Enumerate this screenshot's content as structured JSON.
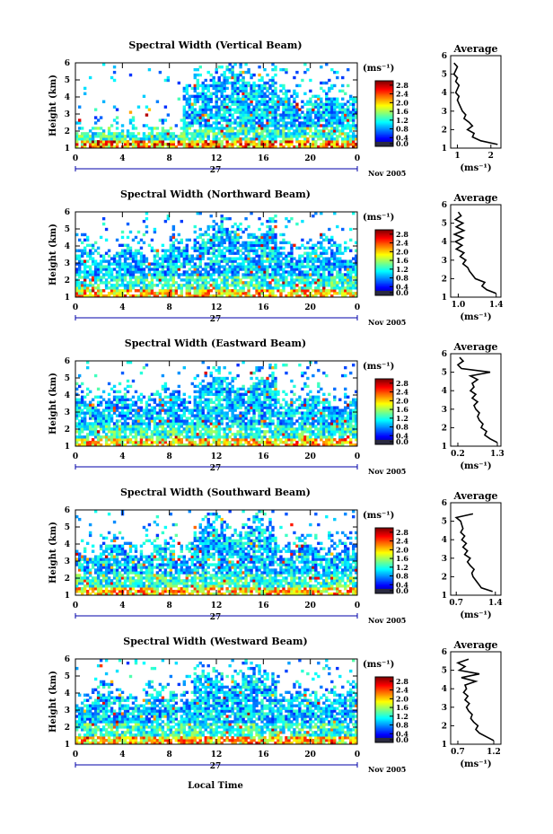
{
  "figure": {
    "xlabel": "Local Time",
    "day_label": "27",
    "month_label": "Nov 2005",
    "unit_label": "(ms⁻¹)",
    "avg_title": "Average",
    "avg_xlabel": "(ms⁻¹)"
  },
  "chart_data": [
    {
      "type": "heatmap",
      "title": "Spectral Width (Vertical Beam)",
      "ylabel": "Height (km)",
      "x_ticks": [
        "0",
        "4",
        "8",
        "12",
        "16",
        "20",
        "0"
      ],
      "y_ticks": [
        "1",
        "2",
        "3",
        "4",
        "5",
        "6"
      ],
      "xlim": [
        0,
        24
      ],
      "ylim": [
        1,
        6
      ],
      "colorbar": {
        "ticks": [
          "0.0",
          "0.4",
          "0.8",
          "1.2",
          "1.6",
          "2.0",
          "2.4",
          "2.8"
        ],
        "range": [
          0,
          3.0
        ]
      },
      "avg_profile": {
        "x_ticks": [
          "1",
          "2"
        ],
        "xlim": [
          0.8,
          2.3
        ],
        "heights": [
          1.2,
          1.4,
          1.6,
          1.8,
          2.0,
          2.2,
          2.4,
          2.6,
          2.8,
          3.0,
          3.2,
          3.4,
          3.6,
          3.8,
          4.0,
          4.2,
          4.4,
          4.6,
          4.8,
          5.0,
          5.2,
          5.4,
          5.6
        ],
        "values": [
          2.2,
          1.7,
          1.45,
          1.5,
          1.3,
          1.45,
          1.35,
          1.2,
          1.25,
          1.15,
          1.1,
          1.05,
          1.0,
          1.05,
          0.95,
          1.0,
          1.05,
          0.95,
          1.0,
          0.9,
          0.95,
          1.0,
          0.9
        ]
      }
    },
    {
      "type": "heatmap",
      "title": "Spectral Width (Northward Beam)",
      "ylabel": "Height (km)",
      "x_ticks": [
        "0",
        "4",
        "8",
        "12",
        "16",
        "20",
        "0"
      ],
      "y_ticks": [
        "1",
        "2",
        "3",
        "4",
        "5",
        "6"
      ],
      "xlim": [
        0,
        24
      ],
      "ylim": [
        1,
        6
      ],
      "colorbar": {
        "ticks": [
          "0.0",
          "0.4",
          "0.8",
          "1.2",
          "1.6",
          "2.0",
          "2.4",
          "2.8"
        ],
        "range": [
          0,
          3.0
        ]
      },
      "avg_profile": {
        "x_ticks": [
          "1.0",
          "1.4"
        ],
        "xlim": [
          0.92,
          1.45
        ],
        "heights": [
          1.2,
          1.4,
          1.6,
          1.8,
          2.0,
          2.2,
          2.4,
          2.6,
          2.8,
          3.0,
          3.2,
          3.4,
          3.6,
          3.8,
          4.0,
          4.2,
          4.4,
          4.6,
          4.8,
          5.0,
          5.2,
          5.4,
          5.6
        ],
        "values": [
          1.4,
          1.3,
          1.25,
          1.28,
          1.18,
          1.15,
          1.12,
          1.1,
          1.05,
          1.08,
          1.02,
          1.06,
          0.98,
          1.04,
          0.97,
          1.05,
          0.96,
          1.06,
          0.98,
          1.05,
          0.97,
          1.03,
          1.0
        ]
      }
    },
    {
      "type": "heatmap",
      "title": "Spectral Width (Eastward Beam)",
      "ylabel": "Height (km)",
      "x_ticks": [
        "0",
        "4",
        "8",
        "12",
        "16",
        "20",
        "0"
      ],
      "y_ticks": [
        "1",
        "2",
        "3",
        "4",
        "5",
        "6"
      ],
      "xlim": [
        0,
        24
      ],
      "ylim": [
        1,
        6
      ],
      "colorbar": {
        "ticks": [
          "0.0",
          "0.4",
          "0.8",
          "1.2",
          "1.6",
          "2.0",
          "2.4",
          "2.8"
        ],
        "range": [
          0,
          3.0
        ]
      },
      "avg_profile": {
        "x_ticks": [
          "0.2",
          "1.3"
        ],
        "xlim": [
          0.0,
          1.4
        ],
        "heights": [
          1.2,
          1.4,
          1.6,
          1.8,
          2.0,
          2.2,
          2.4,
          2.6,
          2.8,
          3.0,
          3.2,
          3.4,
          3.6,
          3.8,
          4.0,
          4.2,
          4.4,
          4.6,
          4.8,
          5.0,
          5.2,
          5.4,
          5.6,
          5.8
        ],
        "values": [
          1.3,
          1.1,
          0.95,
          1.0,
          0.85,
          0.9,
          0.8,
          0.75,
          0.8,
          0.7,
          0.65,
          0.75,
          0.6,
          0.7,
          0.55,
          0.65,
          0.6,
          0.75,
          0.55,
          1.1,
          0.3,
          0.2,
          0.35,
          0.25
        ]
      }
    },
    {
      "type": "heatmap",
      "title": "Spectral Width (Southward Beam)",
      "ylabel": "Height (km)",
      "x_ticks": [
        "0",
        "4",
        "8",
        "12",
        "16",
        "20",
        "0"
      ],
      "y_ticks": [
        "1",
        "2",
        "3",
        "4",
        "5",
        "6"
      ],
      "xlim": [
        0,
        24
      ],
      "ylim": [
        1,
        6
      ],
      "colorbar": {
        "ticks": [
          "0.0",
          "0.4",
          "0.8",
          "1.2",
          "1.6",
          "2.0",
          "2.4",
          "2.8"
        ],
        "range": [
          0,
          3.0
        ]
      },
      "avg_profile": {
        "x_ticks": [
          "0.7",
          "1.4"
        ],
        "xlim": [
          0.6,
          1.5
        ],
        "heights": [
          1.2,
          1.4,
          1.6,
          1.8,
          2.0,
          2.2,
          2.4,
          2.6,
          2.8,
          3.0,
          3.2,
          3.4,
          3.6,
          3.8,
          4.0,
          4.2,
          4.4,
          4.6,
          4.8,
          5.0,
          5.2,
          5.4
        ],
        "values": [
          1.35,
          1.15,
          1.1,
          1.05,
          1.0,
          0.98,
          1.02,
          0.95,
          0.9,
          0.95,
          0.85,
          0.9,
          0.82,
          0.88,
          0.8,
          0.85,
          0.78,
          0.82,
          0.8,
          0.78,
          0.7,
          1.0
        ]
      }
    },
    {
      "type": "heatmap",
      "title": "Spectral Width (Westward Beam)",
      "ylabel": "Height (km)",
      "x_ticks": [
        "0",
        "4",
        "8",
        "12",
        "16",
        "20",
        "0"
      ],
      "y_ticks": [
        "1",
        "2",
        "3",
        "4",
        "5",
        "6"
      ],
      "xlim": [
        0,
        24
      ],
      "ylim": [
        1,
        6
      ],
      "colorbar": {
        "ticks": [
          "0.0",
          "0.4",
          "0.8",
          "1.2",
          "1.6",
          "2.0",
          "2.4",
          "2.8"
        ],
        "range": [
          0,
          3.0
        ]
      },
      "avg_profile": {
        "x_ticks": [
          "0.7",
          "1.2"
        ],
        "xlim": [
          0.6,
          1.3
        ],
        "heights": [
          1.2,
          1.4,
          1.6,
          1.8,
          2.0,
          2.2,
          2.4,
          2.6,
          2.8,
          3.0,
          3.2,
          3.4,
          3.6,
          3.8,
          4.0,
          4.2,
          4.4,
          4.6,
          4.8,
          5.0,
          5.2,
          5.4,
          5.6
        ],
        "values": [
          1.2,
          1.1,
          1.0,
          0.95,
          0.98,
          0.92,
          0.88,
          0.9,
          0.85,
          0.82,
          0.86,
          0.8,
          0.84,
          0.78,
          0.82,
          0.8,
          0.95,
          0.75,
          1.0,
          0.72,
          0.8,
          0.7,
          0.85
        ]
      }
    }
  ]
}
